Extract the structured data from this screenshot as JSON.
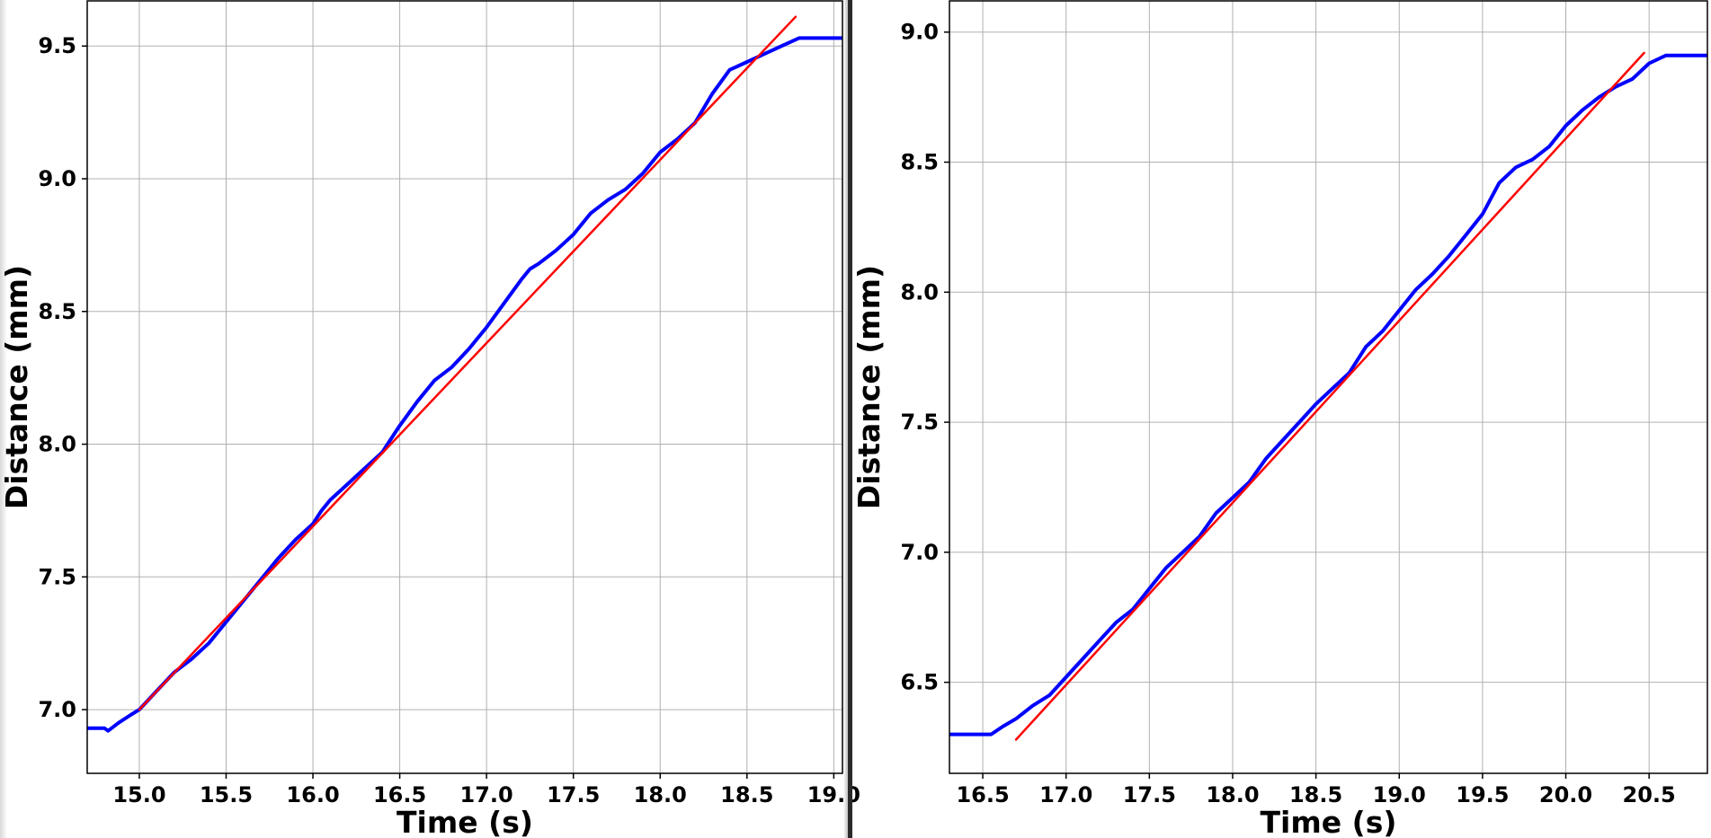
{
  "chart_data": [
    {
      "type": "line",
      "title": "",
      "xlabel": "Time (s)",
      "ylabel": "Distance (mm)",
      "xlim": [
        14.7,
        19.05
      ],
      "ylim": [
        6.76,
        9.67
      ],
      "x_ticks": [
        "15.0",
        "15.5",
        "16.0",
        "16.5",
        "17.0",
        "17.5",
        "18.0",
        "18.5",
        "19.0"
      ],
      "y_ticks": [
        "7.0",
        "7.5",
        "8.0",
        "8.5",
        "9.0",
        "9.5"
      ],
      "grid": true,
      "series": [
        {
          "color": "#0000ff",
          "x": [
            14.7,
            14.8,
            14.82,
            14.88,
            14.95,
            15.0,
            15.1,
            15.2,
            15.3,
            15.4,
            15.5,
            15.6,
            15.7,
            15.8,
            15.9,
            16.0,
            16.05,
            16.1,
            16.2,
            16.3,
            16.4,
            16.45,
            16.5,
            16.6,
            16.7,
            16.8,
            16.9,
            17.0,
            17.1,
            17.2,
            17.25,
            17.3,
            17.4,
            17.5,
            17.6,
            17.7,
            17.8,
            17.9,
            18.0,
            18.1,
            18.2,
            18.3,
            18.4,
            18.5,
            18.6,
            18.7,
            18.8,
            19.05
          ],
          "y": [
            6.93,
            6.93,
            6.92,
            6.95,
            6.98,
            7.0,
            7.07,
            7.14,
            7.19,
            7.25,
            7.33,
            7.41,
            7.49,
            7.57,
            7.64,
            7.7,
            7.75,
            7.79,
            7.85,
            7.91,
            7.97,
            8.02,
            8.07,
            8.16,
            8.24,
            8.29,
            8.36,
            8.44,
            8.53,
            8.62,
            8.66,
            8.68,
            8.73,
            8.79,
            8.87,
            8.92,
            8.96,
            9.02,
            9.1,
            9.15,
            9.21,
            9.32,
            9.41,
            9.44,
            9.47,
            9.5,
            9.53,
            9.53
          ]
        },
        {
          "color": "#ff0000",
          "x": [
            15.0,
            18.78
          ],
          "y": [
            7.0,
            9.61
          ]
        }
      ]
    },
    {
      "type": "line",
      "title": "",
      "xlabel": "Time (s)",
      "ylabel": "Distance (mm)",
      "xlim": [
        16.3,
        20.85
      ],
      "ylim": [
        6.15,
        9.12
      ],
      "x_ticks": [
        "16.5",
        "17.0",
        "17.5",
        "18.0",
        "18.5",
        "19.0",
        "19.5",
        "20.0",
        "20.5"
      ],
      "y_ticks": [
        "6.5",
        "7.0",
        "7.5",
        "8.0",
        "8.5",
        "9.0"
      ],
      "grid": true,
      "series": [
        {
          "color": "#0000ff",
          "x": [
            16.3,
            16.55,
            16.62,
            16.7,
            16.8,
            16.9,
            17.0,
            17.1,
            17.2,
            17.3,
            17.4,
            17.5,
            17.6,
            17.7,
            17.8,
            17.9,
            18.0,
            18.1,
            18.2,
            18.3,
            18.4,
            18.5,
            18.6,
            18.7,
            18.8,
            18.9,
            19.0,
            19.1,
            19.2,
            19.3,
            19.4,
            19.5,
            19.6,
            19.7,
            19.8,
            19.9,
            20.0,
            20.1,
            20.2,
            20.3,
            20.4,
            20.5,
            20.6,
            20.85
          ],
          "y": [
            6.3,
            6.3,
            6.33,
            6.36,
            6.41,
            6.45,
            6.52,
            6.59,
            6.66,
            6.73,
            6.78,
            6.86,
            6.94,
            7.0,
            7.06,
            7.15,
            7.21,
            7.27,
            7.36,
            7.43,
            7.5,
            7.57,
            7.63,
            7.69,
            7.79,
            7.85,
            7.93,
            8.01,
            8.07,
            8.14,
            8.22,
            8.3,
            8.42,
            8.48,
            8.51,
            8.56,
            8.64,
            8.7,
            8.75,
            8.79,
            8.82,
            8.88,
            8.91,
            8.91
          ]
        },
        {
          "color": "#ff0000",
          "x": [
            16.7,
            20.47
          ],
          "y": [
            6.28,
            8.92
          ]
        }
      ]
    }
  ]
}
